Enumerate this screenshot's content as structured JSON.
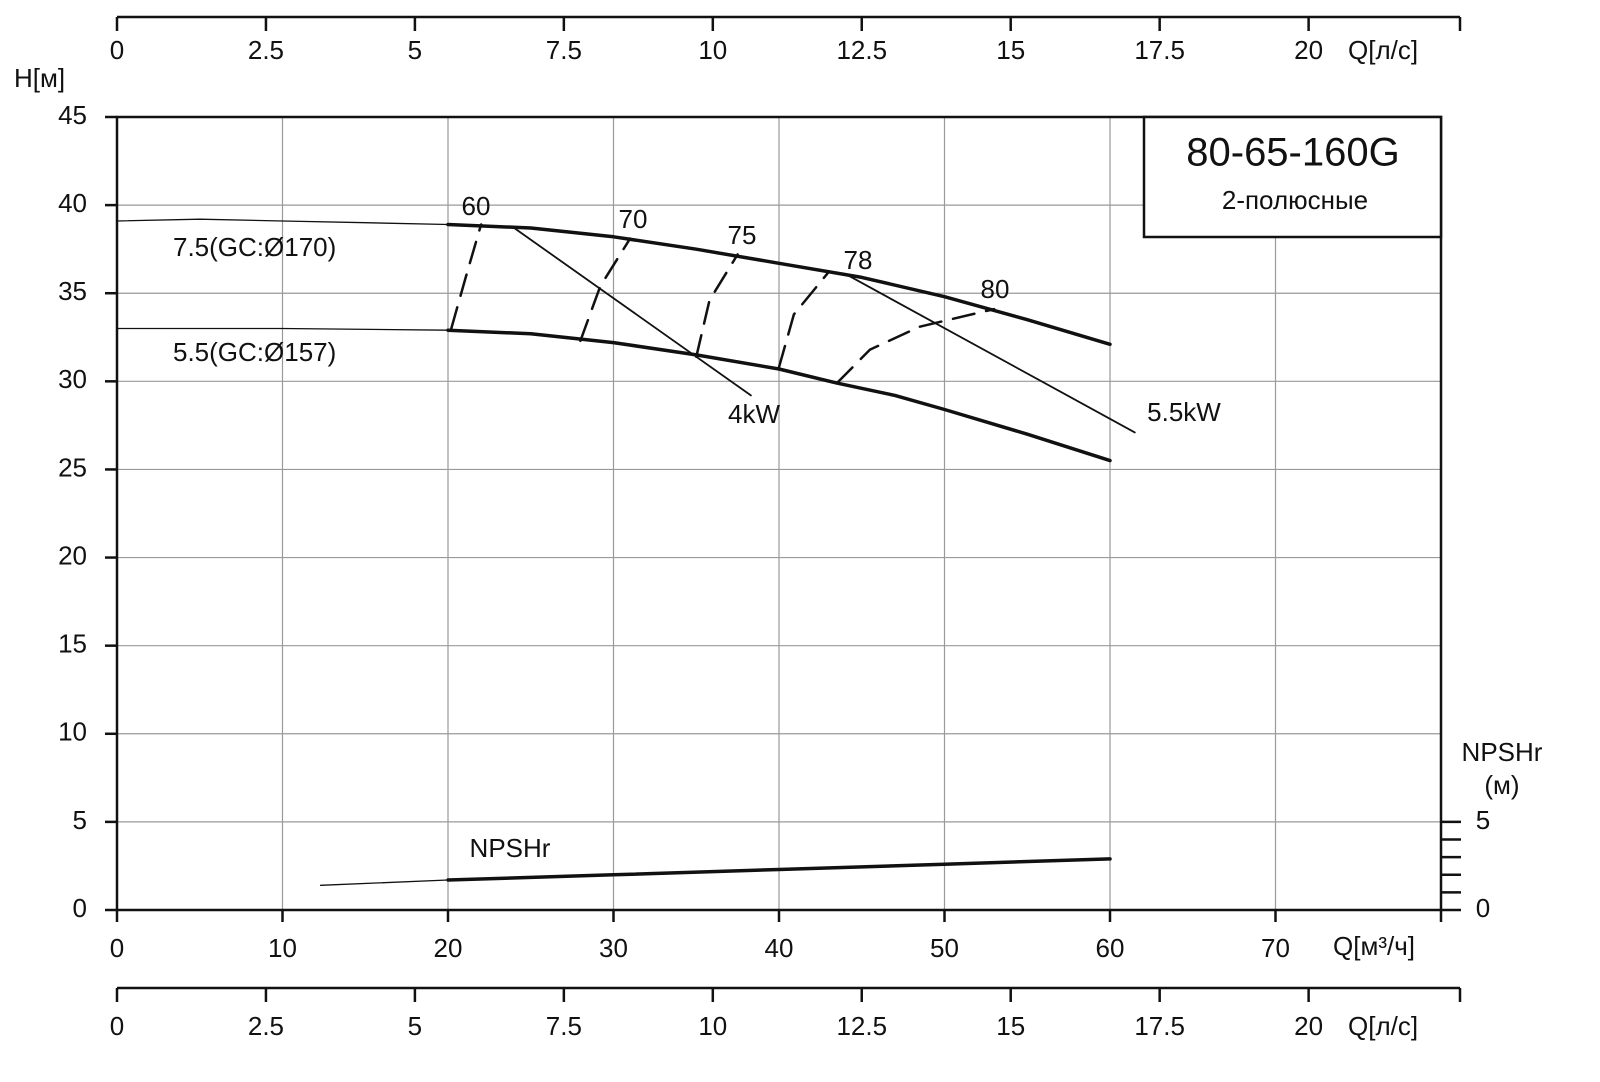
{
  "chart_data": {
    "type": "line",
    "title": "80-65-160G",
    "subtitle": "2-полюсные",
    "ylabel": "H[м]",
    "xlabel": "Q[м³/ч]",
    "y2label": [
      "NPSHr",
      "(м)"
    ],
    "xlim": [
      0,
      80
    ],
    "xticks": [
      0,
      10,
      20,
      30,
      40,
      50,
      60,
      70
    ],
    "ylim": [
      0,
      45
    ],
    "yticks": [
      0,
      5,
      10,
      15,
      20,
      25,
      30,
      35,
      40,
      45
    ],
    "y2lim": [
      0,
      45
    ],
    "y2ticks": [
      0,
      5
    ],
    "y2minor_ticks": [
      1,
      2,
      3,
      4
    ],
    "grid": true,
    "flow_axis": {
      "label": "Q[л/с]",
      "lim": [
        0,
        22.222
      ],
      "ticks": [
        0,
        2.5,
        5,
        7.5,
        10,
        12.5,
        15,
        17.5,
        20
      ]
    },
    "series": [
      {
        "x": [
          0,
          5,
          10,
          15,
          20
        ],
        "values": [
          39.1,
          39.2,
          39.1,
          39.0,
          38.9
        ],
        "line_width": 1.3,
        "dash": false
      },
      {
        "name": "7.5(GC:Ø170)",
        "x": [
          20,
          25,
          30,
          35,
          40,
          45,
          50,
          55,
          60
        ],
        "values": [
          38.9,
          38.7,
          38.2,
          37.5,
          36.7,
          35.9,
          34.8,
          33.5,
          32.1
        ],
        "line_width": 3.5,
        "dash": false
      },
      {
        "x": [
          0,
          10,
          20
        ],
        "values": [
          33.0,
          33.0,
          32.9
        ],
        "line_width": 1.3,
        "dash": false
      },
      {
        "name": "5.5(GC:Ø157)",
        "x": [
          20,
          25,
          30,
          35,
          40,
          43.5,
          47,
          50,
          55,
          60
        ],
        "values": [
          32.9,
          32.7,
          32.2,
          31.5,
          30.7,
          29.9,
          29.2,
          28.4,
          27.0,
          25.5
        ],
        "line_width": 3.5,
        "dash": false
      },
      {
        "name": "60",
        "x": [
          20.2,
          21.1,
          22
        ],
        "values": [
          33.0,
          36.0,
          38.9
        ],
        "line_width": 2.5,
        "dash": true
      },
      {
        "name": "70",
        "x": [
          28,
          29.2,
          31
        ],
        "values": [
          32.3,
          35.4,
          38.1
        ],
        "line_width": 2.5,
        "dash": true
      },
      {
        "name": "75",
        "x": [
          35,
          35.8,
          37.5
        ],
        "values": [
          31.4,
          34.6,
          37.2
        ],
        "line_width": 2.5,
        "dash": true
      },
      {
        "name": "78",
        "x": [
          40,
          40.9,
          43
        ],
        "values": [
          30.8,
          33.8,
          36.2
        ],
        "line_width": 2.5,
        "dash": true
      },
      {
        "name": "80",
        "x": [
          43.5,
          45.5,
          48.5,
          53
        ],
        "values": [
          29.9,
          31.8,
          33.1,
          34.1
        ],
        "line_width": 2.5,
        "dash": true
      },
      {
        "name": "4kW",
        "x": [
          24,
          38.3
        ],
        "values": [
          38.7,
          29.2
        ],
        "line_width": 1.8,
        "dash": false
      },
      {
        "name": "5.5kW",
        "x": [
          44,
          61.5
        ],
        "values": [
          36.1,
          27.1
        ],
        "line_width": 1.8,
        "dash": false
      },
      {
        "x": [
          12.3,
          20
        ],
        "values": [
          1.4,
          1.7
        ],
        "line_width": 1.3,
        "dash": false,
        "axis": "y2"
      },
      {
        "name": "NPSHr",
        "x": [
          20,
          30,
          40,
          50,
          60
        ],
        "values": [
          1.7,
          2.0,
          2.3,
          2.6,
          2.9
        ],
        "line_width": 3.5,
        "dash": false,
        "axis": "y2"
      }
    ]
  }
}
